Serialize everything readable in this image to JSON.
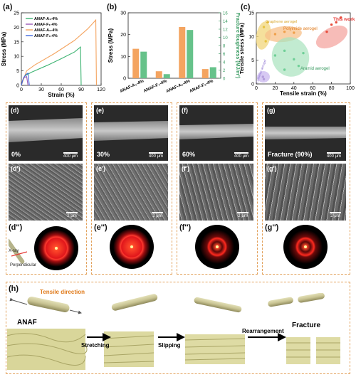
{
  "panels": {
    "a": "(a)",
    "b": "(b)",
    "c": "(c)",
    "d": "(d)",
    "e": "(e)",
    "f": "(f)",
    "g": "(g)",
    "d1": "(d')",
    "e1": "(e')",
    "f1": "(f')",
    "g1": "(g')",
    "d2": "(d'')",
    "e2": "(e'')",
    "f2": "(f'')",
    "g2": "(g'')",
    "h": "(h)"
  },
  "chart_data": [
    {
      "id": "a",
      "type": "line",
      "xlabel": "Strain (%)",
      "ylabel": "Stress (MPa)",
      "xlim": [
        0,
        120
      ],
      "ylim": [
        0,
        25
      ],
      "xticks": [
        0,
        30,
        60,
        90,
        120
      ],
      "yticks": [
        0,
        5,
        10,
        15,
        20,
        25
      ],
      "legend": "top-left",
      "series": [
        {
          "name": "ANAF-A₁-4%",
          "color": "#3cb371",
          "points": [
            [
              0,
              0
            ],
            [
              2,
              1.5
            ],
            [
              5,
              3.2
            ],
            [
              15,
              4.5
            ],
            [
              40,
              7
            ],
            [
              60,
              9.2
            ],
            [
              80,
              11.5
            ],
            [
              89,
              13.2
            ],
            [
              90,
              0
            ]
          ]
        },
        {
          "name": "ANAF-F₁-4%",
          "color": "#9b59b6",
          "points": [
            [
              0,
              0
            ],
            [
              2,
              1.8
            ],
            [
              5,
              2.8
            ],
            [
              8,
              3
            ],
            [
              10,
              0
            ]
          ]
        },
        {
          "name": "ANAF-A₆-4%",
          "color": "#f4a460",
          "points": [
            [
              0,
              0
            ],
            [
              3,
              2
            ],
            [
              8,
              5
            ],
            [
              20,
              7
            ],
            [
              50,
              11
            ],
            [
              80,
              15.5
            ],
            [
              100,
              19.5
            ],
            [
              112,
              22.5
            ],
            [
              113,
              0
            ]
          ]
        },
        {
          "name": "ANAF-F₆-4%",
          "color": "#4169e1",
          "points": [
            [
              0,
              0
            ],
            [
              3,
              2.5
            ],
            [
              7,
              3.8
            ],
            [
              10,
              4.2
            ],
            [
              12,
              0
            ]
          ]
        }
      ]
    },
    {
      "id": "b",
      "type": "bar",
      "ylabel": "Stress (MPa)",
      "y2label": "Fracture toughness (MJ/m³)",
      "ylim": [
        0,
        30
      ],
      "y2lim": [
        0,
        16
      ],
      "yticks": [
        0,
        10,
        20,
        30
      ],
      "y2ticks": [
        0,
        2,
        4,
        6,
        8,
        10,
        12,
        14,
        16
      ],
      "categories": [
        "ANAF-A₁-4%",
        "ANAF-F₁-4%",
        "ANAF-A₆-4%",
        "ANAF-F₆-4%"
      ],
      "series": [
        {
          "name": "Stress",
          "color": "#f4a460",
          "axis": "left",
          "values": [
            13.5,
            3.2,
            23.5,
            4.2
          ]
        },
        {
          "name": "Fracture toughness",
          "color": "#66c28a",
          "axis": "right",
          "values": [
            6.5,
            1.0,
            11.8,
            2.7
          ]
        }
      ]
    },
    {
      "id": "c",
      "type": "scatter",
      "xlabel": "Tensile strain (%)",
      "ylabel": "Tensile stress (MPa)",
      "xlim": [
        0,
        100
      ],
      "ylim": [
        0,
        15
      ],
      "xticks": [
        0,
        20,
        40,
        60,
        80,
        100
      ],
      "yticks": [
        0,
        5,
        10,
        15
      ],
      "regions": [
        {
          "label": "Graphene aerogel",
          "color": "#e8c341"
        },
        {
          "label": "Polyimide aerogel",
          "color": "#f0a04b"
        },
        {
          "label": "Aramid aerogel",
          "color": "#6fcf97"
        },
        {
          "label": "Cellulose aerogel",
          "color": "#b39ddb"
        },
        {
          "label": "This work",
          "color": "#e74c3c"
        }
      ]
    }
  ],
  "sem_top": [
    {
      "label": "0%",
      "scale": "400 μm"
    },
    {
      "label": "30%",
      "scale": "400 μm"
    },
    {
      "label": "60%",
      "scale": "400 μm"
    },
    {
      "label": "Fracture (90%)",
      "scale": "400 μm"
    }
  ],
  "sem_mid_scale": "2 μm",
  "waxs": {
    "xray": "X-ray",
    "perpendicular": "Perpendicular"
  },
  "mechanism": {
    "tensile": "Tensile direction",
    "anaf": "ANAF",
    "stretching": "Stretching",
    "slipping": "Slipping",
    "rearrangement": "Rearrangement",
    "fracture": "Fracture"
  }
}
